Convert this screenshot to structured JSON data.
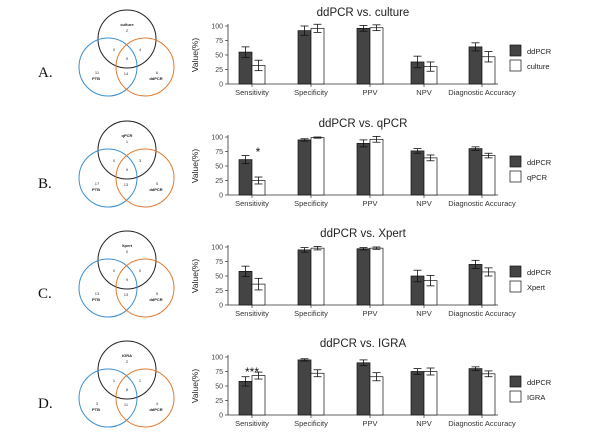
{
  "colors": {
    "dark": "#444444",
    "light": "#ffffff",
    "stroke": "#111111",
    "venn_top": "#222222",
    "venn_left": "#3a8fd0",
    "venn_right": "#e27b2f"
  },
  "panels": [
    {
      "letter": "A.",
      "venn": {
        "top_label": "culture",
        "left_label": "PTB",
        "right_label": "ddPCR",
        "counts": [
          "2",
          "0",
          "4",
          "11",
          "6",
          "14",
          "9"
        ]
      },
      "chart_data": {
        "type": "bar",
        "title": "ddPCR vs. culture",
        "ylabel": "Value(%)",
        "ylim": [
          0,
          100
        ],
        "yticks": [
          "0",
          "25",
          "50",
          "75",
          "100"
        ],
        "categories": [
          "Sensitivity",
          "Specificity",
          "PPV",
          "NPV",
          "Diagnostic Accuracy"
        ],
        "series": [
          {
            "name": "ddPCR",
            "values": [
              55,
              92,
              96,
              38,
              64
            ],
            "errors": [
              9,
              8,
              5,
              10,
              7
            ],
            "style": "dark"
          },
          {
            "name": "culture",
            "values": [
              32,
              96,
              97,
              30,
              47
            ],
            "errors": [
              9,
              7,
              5,
              8,
              9
            ],
            "style": "light"
          }
        ],
        "annotation": ""
      }
    },
    {
      "letter": "B.",
      "venn": {
        "top_label": "qPCR",
        "left_label": "PTB",
        "right_label": "ddPCR",
        "counts": [
          "1",
          "0",
          "3",
          "17",
          "5",
          "13",
          "9"
        ]
      },
      "chart_data": {
        "type": "bar",
        "title": "ddPCR vs. qPCR",
        "ylabel": "Value(%)",
        "ylim": [
          0,
          100
        ],
        "yticks": [
          "0",
          "25",
          "50",
          "75",
          "100"
        ],
        "categories": [
          "Sensitivity",
          "Specificity",
          "PPV",
          "NPV",
          "Diagnostic Accuracy"
        ],
        "series": [
          {
            "name": "ddPCR",
            "values": [
              61,
              95,
              89,
              76,
              80
            ],
            "errors": [
              7,
              2,
              6,
              4,
              3
            ],
            "style": "dark"
          },
          {
            "name": "qPCR",
            "values": [
              25,
              99,
              96,
              64,
              68
            ],
            "errors": [
              6,
              1,
              5,
              5,
              4
            ],
            "style": "light"
          }
        ],
        "annotation": "*"
      }
    },
    {
      "letter": "C.",
      "venn": {
        "top_label": "Xpert",
        "left_label": "PTB",
        "right_label": "ddPCR",
        "counts": [
          "0",
          "0",
          "0",
          "13",
          "5",
          "13",
          "9"
        ]
      },
      "chart_data": {
        "type": "bar",
        "title": "ddPCR vs. Xpert",
        "ylabel": "Value(%)",
        "ylim": [
          0,
          100
        ],
        "yticks": [
          "0",
          "25",
          "50",
          "75",
          "100"
        ],
        "categories": [
          "Sensitivity",
          "Specificity",
          "PPV",
          "NPV",
          "Diagnostic Accuracy"
        ],
        "series": [
          {
            "name": "ddPCR",
            "values": [
              58,
              95,
              97,
              50,
              70
            ],
            "errors": [
              9,
              4,
              2,
              10,
              7
            ],
            "style": "dark"
          },
          {
            "name": "Xpert",
            "values": [
              36,
              98,
              98,
              42,
              57
            ],
            "errors": [
              10,
              3,
              2,
              9,
              7
            ],
            "style": "light"
          }
        ],
        "annotation": ""
      }
    },
    {
      "letter": "D.",
      "venn": {
        "top_label": "IGRA",
        "left_label": "PTB",
        "right_label": "ddPCR",
        "counts": [
          "2",
          "1",
          "1",
          "3",
          "4",
          "11",
          "8"
        ]
      },
      "chart_data": {
        "type": "bar",
        "title": "ddPCR vs. IGRA",
        "ylabel": "Value(%)",
        "ylim": [
          0,
          100
        ],
        "yticks": [
          "0",
          "25",
          "50",
          "75",
          "100"
        ],
        "categories": [
          "Sensitivity",
          "Specificity",
          "PPV",
          "NPV",
          "Diagnostic Accuracy"
        ],
        "series": [
          {
            "name": "ddPCR",
            "values": [
              58,
              95,
              90,
              75,
              80
            ],
            "errors": [
              8,
              2,
              5,
              5,
              3
            ],
            "style": "dark"
          },
          {
            "name": "IGRA",
            "values": [
              68,
              72,
              66,
              75,
              71
            ],
            "errors": [
              6,
              6,
              7,
              6,
              5
            ],
            "style": "light"
          }
        ],
        "annotation": "***"
      }
    }
  ]
}
